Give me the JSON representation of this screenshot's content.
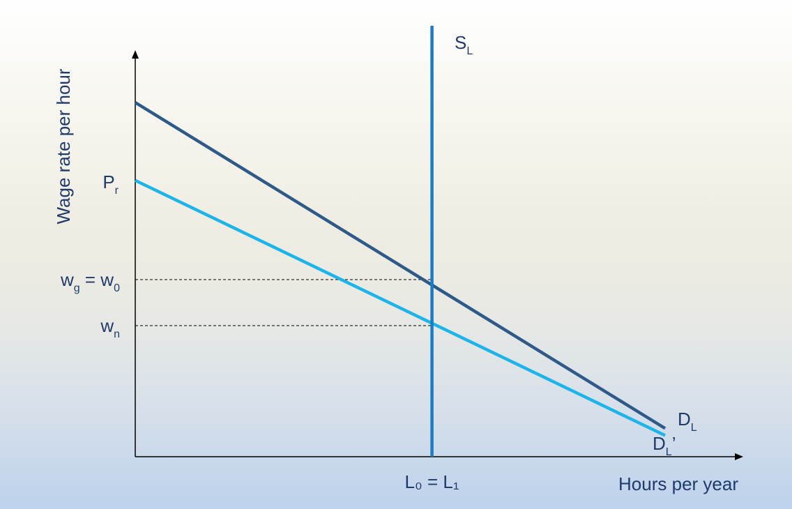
{
  "chart_data": {
    "type": "line",
    "title": "",
    "xlabel": "Hours per year",
    "ylabel": "Wage rate  per hour",
    "xlim": [
      0,
      100
    ],
    "ylim": [
      0,
      100
    ],
    "grid": false,
    "series": [
      {
        "name": "D_L",
        "label_main": "D",
        "label_sub": "L",
        "color": "#2e5a8a",
        "points": [
          [
            0,
            100
          ],
          [
            100,
            8
          ]
        ]
      },
      {
        "name": "D_L'",
        "label_main": "D",
        "label_sub": "L",
        "label_suffix": "’",
        "color": "#1cb4ea",
        "points": [
          [
            0,
            78
          ],
          [
            100,
            6
          ]
        ]
      },
      {
        "name": "S_L",
        "label_main": "S",
        "label_sub": "L",
        "color": "#1b7bc4",
        "points": [
          [
            56,
            -4
          ],
          [
            56,
            120
          ]
        ]
      }
    ],
    "reference_lines": [
      {
        "label_main": "w",
        "label_sub": "g",
        "label_rest": " = w",
        "label_sub2": "0",
        "y": 50,
        "x_end": 56
      },
      {
        "label_main": "w",
        "label_sub": "n",
        "y": 37,
        "x_end": 56
      }
    ],
    "y_ticks": [
      {
        "label_main": "P",
        "label_sub": "r",
        "y": 78
      }
    ],
    "x_ticks": [
      {
        "label": "L₀ = L₁",
        "x": 56
      }
    ],
    "colors": {
      "axis": "#000000",
      "text": "#1f3a6b"
    }
  }
}
